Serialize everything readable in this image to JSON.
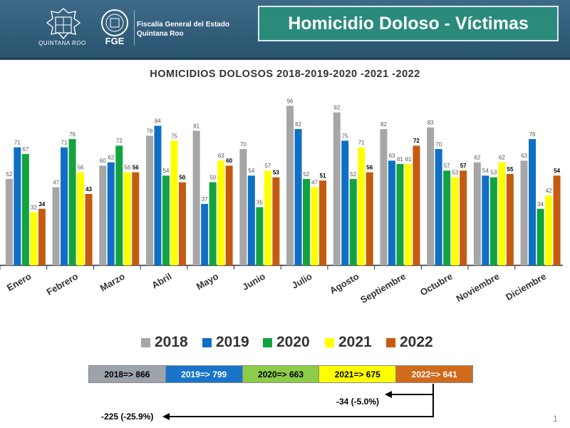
{
  "header": {
    "state_logo_text": "QUINTANA ROO",
    "fge_logo_text": "FGE",
    "agency_line1": "Fiscalía General del Estado",
    "agency_line2": "Quintana Roo",
    "title": "Homicidio Doloso - Víctimas"
  },
  "colors": {
    "header_bg": "#2f5c7a",
    "title_bg": "#2a8a7b",
    "s2018": "#a6a6a6",
    "s2019": "#0f6fc6",
    "s2020": "#12a33f",
    "s2021": "#ffff00",
    "s2022": "#c55a11"
  },
  "chart_data": {
    "type": "bar",
    "title": "HOMICIDIOS DOLOSOS 2018-2019-2020 -2021 -2022",
    "xlabel": "",
    "ylabel": "",
    "ylim": [
      0,
      100
    ],
    "grid": false,
    "legend_position": "bottom",
    "categories": [
      "Enero",
      "Febrero",
      "Marzo",
      "Abril",
      "Mayo",
      "Junio",
      "Julio",
      "Agosto",
      "Septiembre",
      "Octubre",
      "Noviembre",
      "Diciembre"
    ],
    "series": [
      {
        "name": "2018",
        "color": "#a6a6a6",
        "values": [
          52,
          47,
          60,
          78,
          81,
          70,
          96,
          92,
          82,
          83,
          62,
          63
        ]
      },
      {
        "name": "2019",
        "color": "#0f6fc6",
        "values": [
          71,
          71,
          62,
          84,
          37,
          54,
          82,
          75,
          63,
          70,
          54,
          76
        ]
      },
      {
        "name": "2020",
        "color": "#12a33f",
        "values": [
          67,
          76,
          72,
          54,
          50,
          35,
          52,
          52,
          61,
          57,
          53,
          34
        ]
      },
      {
        "name": "2021",
        "color": "#ffff00",
        "values": [
          32,
          56,
          56,
          75,
          63,
          57,
          47,
          71,
          61,
          53,
          62,
          42
        ]
      },
      {
        "name": "2022",
        "color": "#c55a11",
        "values": [
          34,
          43,
          56,
          50,
          60,
          53,
          51,
          56,
          72,
          57,
          55,
          54
        ]
      }
    ]
  },
  "totals": [
    {
      "label": "2018=> 866",
      "color": "#9da3aa",
      "text_color": "#000000"
    },
    {
      "label": "2019=> 799",
      "color": "#1a75c9",
      "text_color": "#ffffff"
    },
    {
      "label": "2020=> 663",
      "color": "#8ccc48",
      "text_color": "#000000"
    },
    {
      "label": "2021=> 675",
      "color": "#ffff00",
      "text_color": "#000000"
    },
    {
      "label": "2022=> 641",
      "color": "#d06a1c",
      "text_color": "#ffffff"
    }
  ],
  "differences": {
    "vs_2021": "-34 (-5.0%)",
    "vs_2018": "-225 (-25.9%)"
  },
  "page_number": "1"
}
